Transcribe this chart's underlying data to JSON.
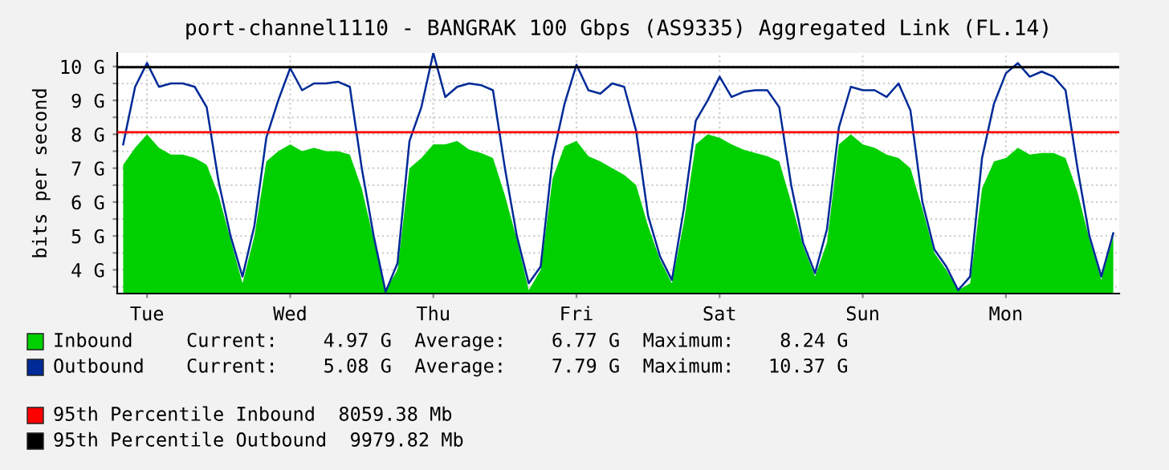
{
  "chart_data": {
    "type": "area",
    "title": "port-channel1110 - BANGRAK 100 Gbps (AS9335) Aggregated Link (FL.14)",
    "ylabel": "bits per second",
    "categories": [
      null,
      null,
      "Tue",
      null,
      null,
      null,
      null,
      null,
      null,
      null,
      null,
      null,
      null,
      null,
      "Wed",
      null,
      null,
      null,
      null,
      null,
      null,
      null,
      null,
      null,
      null,
      null,
      "Thu",
      null,
      null,
      null,
      null,
      null,
      null,
      null,
      null,
      null,
      null,
      null,
      "Fri",
      null,
      null,
      null,
      null,
      null,
      null,
      null,
      null,
      null,
      null,
      null,
      "Sat",
      null,
      null,
      null,
      null,
      null,
      null,
      null,
      null,
      null,
      null,
      null,
      "Sun",
      null,
      null,
      null,
      null,
      null,
      null,
      null,
      null,
      null,
      null,
      null,
      "Mon",
      null,
      null,
      null,
      null,
      null,
      null,
      null,
      null,
      null
    ],
    "series": [
      {
        "name": "Inbound",
        "color": "#00cf00",
        "values": [
          7.1,
          7.6,
          8.0,
          7.6,
          7.4,
          7.4,
          7.3,
          7.1,
          6.2,
          4.9,
          3.6,
          5.0,
          7.2,
          7.5,
          7.7,
          7.5,
          7.6,
          7.5,
          7.5,
          7.4,
          6.4,
          4.9,
          3.4,
          4.0,
          7.0,
          7.3,
          7.7,
          7.7,
          7.8,
          7.55,
          7.45,
          7.3,
          6.2,
          4.9,
          3.4,
          4.0,
          6.7,
          7.65,
          7.8,
          7.35,
          7.2,
          7.0,
          6.8,
          6.5,
          5.3,
          4.3,
          3.6,
          5.4,
          7.7,
          8.0,
          7.9,
          7.7,
          7.55,
          7.45,
          7.35,
          7.2,
          6.0,
          4.7,
          3.8,
          4.8,
          7.7,
          8.0,
          7.7,
          7.6,
          7.4,
          7.3,
          7.0,
          5.8,
          4.5,
          4.0,
          3.4,
          3.6,
          6.4,
          7.2,
          7.3,
          7.6,
          7.4,
          7.45,
          7.45,
          7.3,
          6.3,
          4.9,
          3.7,
          4.97
        ]
      },
      {
        "name": "Outbound",
        "type": "line",
        "color": "#002a97",
        "values": [
          7.7,
          9.4,
          10.1,
          9.4,
          9.5,
          9.5,
          9.4,
          8.8,
          6.6,
          5.0,
          3.8,
          5.3,
          7.9,
          9.0,
          9.95,
          9.3,
          9.5,
          9.5,
          9.55,
          9.4,
          7.0,
          5.0,
          3.35,
          4.2,
          7.8,
          8.8,
          10.4,
          9.1,
          9.4,
          9.5,
          9.45,
          9.3,
          7.0,
          5.0,
          3.6,
          4.1,
          7.3,
          8.9,
          10.05,
          9.3,
          9.2,
          9.5,
          9.4,
          8.1,
          5.6,
          4.4,
          3.7,
          5.8,
          8.4,
          9.0,
          9.7,
          9.1,
          9.25,
          9.3,
          9.3,
          8.8,
          6.5,
          4.8,
          3.9,
          5.2,
          8.2,
          9.4,
          9.3,
          9.3,
          9.1,
          9.5,
          8.7,
          6.0,
          4.6,
          4.1,
          3.4,
          3.8,
          7.3,
          8.9,
          9.8,
          10.1,
          9.7,
          9.85,
          9.7,
          9.3,
          7.0,
          5.0,
          3.8,
          5.08
        ]
      }
    ],
    "ylim": [
      3.3,
      10.4
    ],
    "yticks": [
      {
        "value": 3.5,
        "label": null
      },
      {
        "value": 4,
        "label": "4 G"
      },
      {
        "value": 4.5,
        "label": null
      },
      {
        "value": 5,
        "label": "5 G"
      },
      {
        "value": 5.5,
        "label": null
      },
      {
        "value": 6,
        "label": "6 G"
      },
      {
        "value": 6.5,
        "label": null
      },
      {
        "value": 7,
        "label": "7 G"
      },
      {
        "value": 7.5,
        "label": null
      },
      {
        "value": 8,
        "label": "8 G"
      },
      {
        "value": 8.5,
        "label": null
      },
      {
        "value": 9,
        "label": "9 G"
      },
      {
        "value": 9.5,
        "label": null
      },
      {
        "value": 10,
        "label": "10 G"
      }
    ],
    "grid": true,
    "legend": "bottom",
    "ref_lines": [
      {
        "axis": "y",
        "value": 8.05938,
        "label": "95th Percentile Inbound  8059.38 Mb",
        "color": "#ff0000"
      },
      {
        "axis": "y",
        "value": 9.97982,
        "label": "95th Percentile Outbound  9979.82 Mb",
        "color": "#000000"
      }
    ],
    "annotations": [
      "Current:    4.97 G  Average:    6.77 G  Maximum:    8.24 G",
      "Current:    5.08 G  Average:    7.79 G  Maximum:   10.37 G"
    ]
  }
}
